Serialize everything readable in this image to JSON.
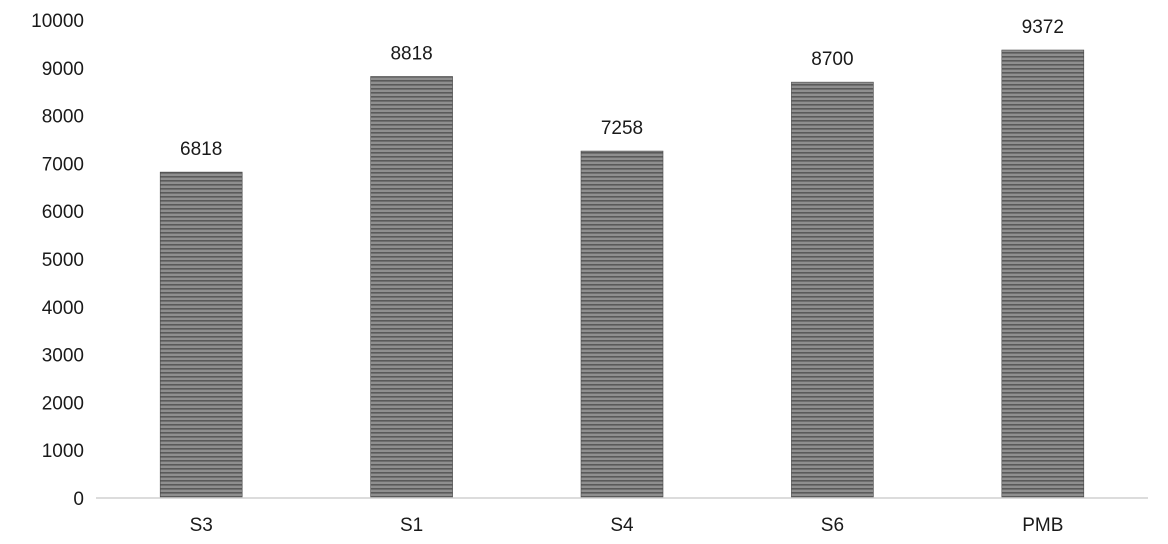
{
  "chart_data": {
    "type": "bar",
    "categories": [
      "S3",
      "S1",
      "S4",
      "S6",
      "PMB"
    ],
    "values": [
      6818,
      8818,
      7258,
      8700,
      9372
    ],
    "ylim": [
      0,
      10000
    ],
    "yticks": [
      0,
      1000,
      2000,
      3000,
      4000,
      5000,
      6000,
      7000,
      8000,
      9000,
      10000
    ],
    "title": "",
    "xlabel": "",
    "ylabel": "",
    "grid": false,
    "legend": "none",
    "data_labels": true
  },
  "colors": {
    "bar_fill": "#8c8c8c",
    "bar_stripe": "#5e5e5e",
    "axis": "#d0d0d0",
    "text": "#1a1a1a"
  }
}
